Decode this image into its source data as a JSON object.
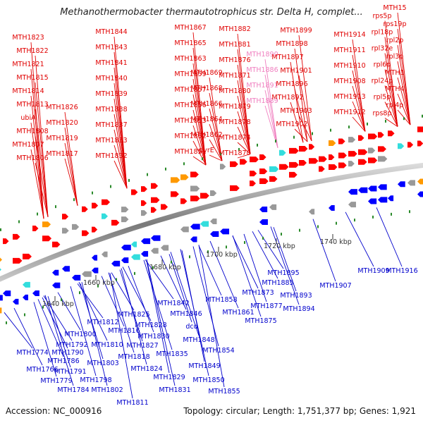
{
  "title": "Methanothermobacter thermautotrophicus str. Delta H, complet...",
  "accession": "Accession: NC_000916",
  "topology": "Topology: circular; Length: 1,751,377 bp; Genes: 1,921",
  "colors": {
    "forward_label": "#e00000",
    "reverse_label": "#0000cc",
    "pseudo_label": "#f080c0",
    "backbone": "#888888"
  },
  "scale_labels": [
    {
      "text": "1640 kbp",
      "pos": 0
    },
    {
      "text": "1660 kbp",
      "pos": 1
    },
    {
      "text": "1680 kbp",
      "pos": 2
    },
    {
      "text": "1700 kbp",
      "pos": 3
    },
    {
      "text": "1720 kbp",
      "pos": 4
    },
    {
      "text": "1740 kbp",
      "pos": 5
    }
  ],
  "top_labels": [
    {
      "text": "MTH1823",
      "kind": "f"
    },
    {
      "text": "MTH1822",
      "kind": "f"
    },
    {
      "text": "MTH1821",
      "kind": "f"
    },
    {
      "text": "MTH1815",
      "kind": "f"
    },
    {
      "text": "MTH1814",
      "kind": "f"
    },
    {
      "text": "MTH1813",
      "kind": "f"
    },
    {
      "text": "ubiA",
      "kind": "f"
    },
    {
      "text": "MTH1808",
      "kind": "f"
    },
    {
      "text": "MTH1807",
      "kind": "f"
    },
    {
      "text": "MTH1806",
      "kind": "f"
    },
    {
      "text": "MTH1826",
      "kind": "f"
    },
    {
      "text": "MTH1820",
      "kind": "f"
    },
    {
      "text": "MTH1819",
      "kind": "f"
    },
    {
      "text": "MTH1817",
      "kind": "f"
    },
    {
      "text": "MTH1844",
      "kind": "f"
    },
    {
      "text": "MTH1843",
      "kind": "f"
    },
    {
      "text": "MTH1841",
      "kind": "f"
    },
    {
      "text": "MTH1840",
      "kind": "f"
    },
    {
      "text": "MTH1839",
      "kind": "f"
    },
    {
      "text": "MTH1838",
      "kind": "f"
    },
    {
      "text": "MTH1837",
      "kind": "f"
    },
    {
      "text": "MTH1833",
      "kind": "f"
    },
    {
      "text": "MTH1832",
      "kind": "f"
    },
    {
      "text": "MTH1867",
      "kind": "f"
    },
    {
      "text": "MTH1865",
      "kind": "f"
    },
    {
      "text": "MTH1863",
      "kind": "f"
    },
    {
      "text": "MTH1859",
      "kind": "f"
    },
    {
      "text": "MTH1857",
      "kind": "f"
    },
    {
      "text": "MTH1856",
      "kind": "f"
    },
    {
      "text": "MTH1853",
      "kind": "f"
    },
    {
      "text": "MTH1852",
      "kind": "f"
    },
    {
      "text": "MTH1851",
      "kind": "f"
    },
    {
      "text": "MTH1869",
      "kind": "f"
    },
    {
      "text": "MTH1868",
      "kind": "f"
    },
    {
      "text": "MTH1866",
      "kind": "f"
    },
    {
      "text": "MTH1864",
      "kind": "f"
    },
    {
      "text": "MTH1862",
      "kind": "f"
    },
    {
      "text": "pyrE",
      "kind": "f"
    },
    {
      "text": "MTH1882",
      "kind": "f"
    },
    {
      "text": "MTH1881",
      "kind": "f"
    },
    {
      "text": "MTH1876",
      "kind": "f"
    },
    {
      "text": "MTH1871",
      "kind": "f"
    },
    {
      "text": "MTH1880",
      "kind": "f"
    },
    {
      "text": "MTH1879",
      "kind": "f"
    },
    {
      "text": "MTH1878",
      "kind": "f"
    },
    {
      "text": "MTH1874",
      "kind": "f"
    },
    {
      "text": "MTH1870",
      "kind": "f"
    },
    {
      "text": "MTH1890",
      "kind": "p"
    },
    {
      "text": "MTH1886",
      "kind": "p"
    },
    {
      "text": "MTH1891",
      "kind": "p"
    },
    {
      "text": "MTH1889",
      "kind": "p"
    },
    {
      "text": "MTH1899",
      "kind": "f"
    },
    {
      "text": "MTH1898",
      "kind": "f"
    },
    {
      "text": "MTH1897",
      "kind": "f"
    },
    {
      "text": "MTH1901",
      "kind": "f"
    },
    {
      "text": "MTH1896",
      "kind": "f"
    },
    {
      "text": "MTH1892",
      "kind": "f"
    },
    {
      "text": "MTH1903",
      "kind": "f"
    },
    {
      "text": "MTH1902",
      "kind": "f"
    },
    {
      "text": "MTH1914",
      "kind": "f"
    },
    {
      "text": "MTH1911",
      "kind": "f"
    },
    {
      "text": "MTH1910",
      "kind": "f"
    },
    {
      "text": "MTH1908",
      "kind": "f"
    },
    {
      "text": "MTH1913",
      "kind": "f"
    },
    {
      "text": "MTH1912",
      "kind": "f"
    },
    {
      "text": "MTH15",
      "kind": "f"
    },
    {
      "text": "rps5p",
      "kind": "f"
    },
    {
      "text": "rps19p",
      "kind": "f"
    },
    {
      "text": "rpl18p",
      "kind": "f"
    },
    {
      "text": "rpl2p",
      "kind": "f"
    },
    {
      "text": "rpl32e",
      "kind": "f"
    },
    {
      "text": "rpl3p",
      "kind": "f"
    },
    {
      "text": "rpl6p",
      "kind": "f"
    },
    {
      "text": "MTH1",
      "kind": "f"
    },
    {
      "text": "rpl24p",
      "kind": "f"
    },
    {
      "text": "MTH4",
      "kind": "f"
    },
    {
      "text": "rpl5p",
      "kind": "f"
    },
    {
      "text": "rpl4p",
      "kind": "f"
    },
    {
      "text": "rps8p",
      "kind": "f"
    }
  ],
  "bottom_labels": [
    {
      "text": "MTH1842"
    },
    {
      "text": "MTH1846"
    },
    {
      "text": "dcd"
    },
    {
      "text": "MTH1848"
    },
    {
      "text": "MTH1854"
    },
    {
      "text": "MTH1849"
    },
    {
      "text": "MTH1850"
    },
    {
      "text": "MTH1855"
    },
    {
      "text": "MTH1858"
    },
    {
      "text": "MTH1861"
    },
    {
      "text": "MTH1873"
    },
    {
      "text": "MTH1877"
    },
    {
      "text": "MTH1875"
    },
    {
      "text": "MTH1885"
    },
    {
      "text": "MTH1893"
    },
    {
      "text": "MTH1894"
    },
    {
      "text": "MTH1895"
    },
    {
      "text": "MTH1907"
    },
    {
      "text": "MTH1909"
    },
    {
      "text": "MTH1916"
    },
    {
      "text": "MTH1825"
    },
    {
      "text": "MTH1828"
    },
    {
      "text": "MTH1830"
    },
    {
      "text": "MTH1827"
    },
    {
      "text": "MTH1835"
    },
    {
      "text": "MTH1824"
    },
    {
      "text": "MTH1829"
    },
    {
      "text": "MTH1831"
    },
    {
      "text": "MTH1812"
    },
    {
      "text": "MTH1816"
    },
    {
      "text": "MTH1810"
    },
    {
      "text": "MTH1818"
    },
    {
      "text": "MTH1800"
    },
    {
      "text": "MTH1792"
    },
    {
      "text": "MTH1790"
    },
    {
      "text": "MTH1803"
    },
    {
      "text": "MTH1774"
    },
    {
      "text": "MTH1786"
    },
    {
      "text": "MTH1791"
    },
    {
      "text": "MTH1766"
    },
    {
      "text": "MTH1798"
    },
    {
      "text": "MTH1779"
    },
    {
      "text": "MTH1784"
    },
    {
      "text": "MTH1802"
    },
    {
      "text": "MTH1811"
    }
  ]
}
